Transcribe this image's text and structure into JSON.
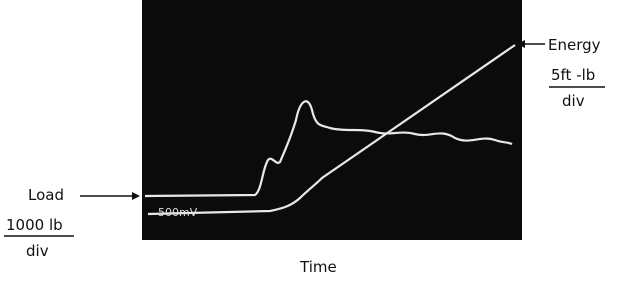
{
  "labels": {
    "energy": "Energy",
    "energy_scale": "5ft -lb",
    "energy_unit": "div",
    "load": "Load",
    "load_scale": "1000 lb",
    "load_unit": "div",
    "x_axis": "Time",
    "screen_note": "500mV"
  }
}
